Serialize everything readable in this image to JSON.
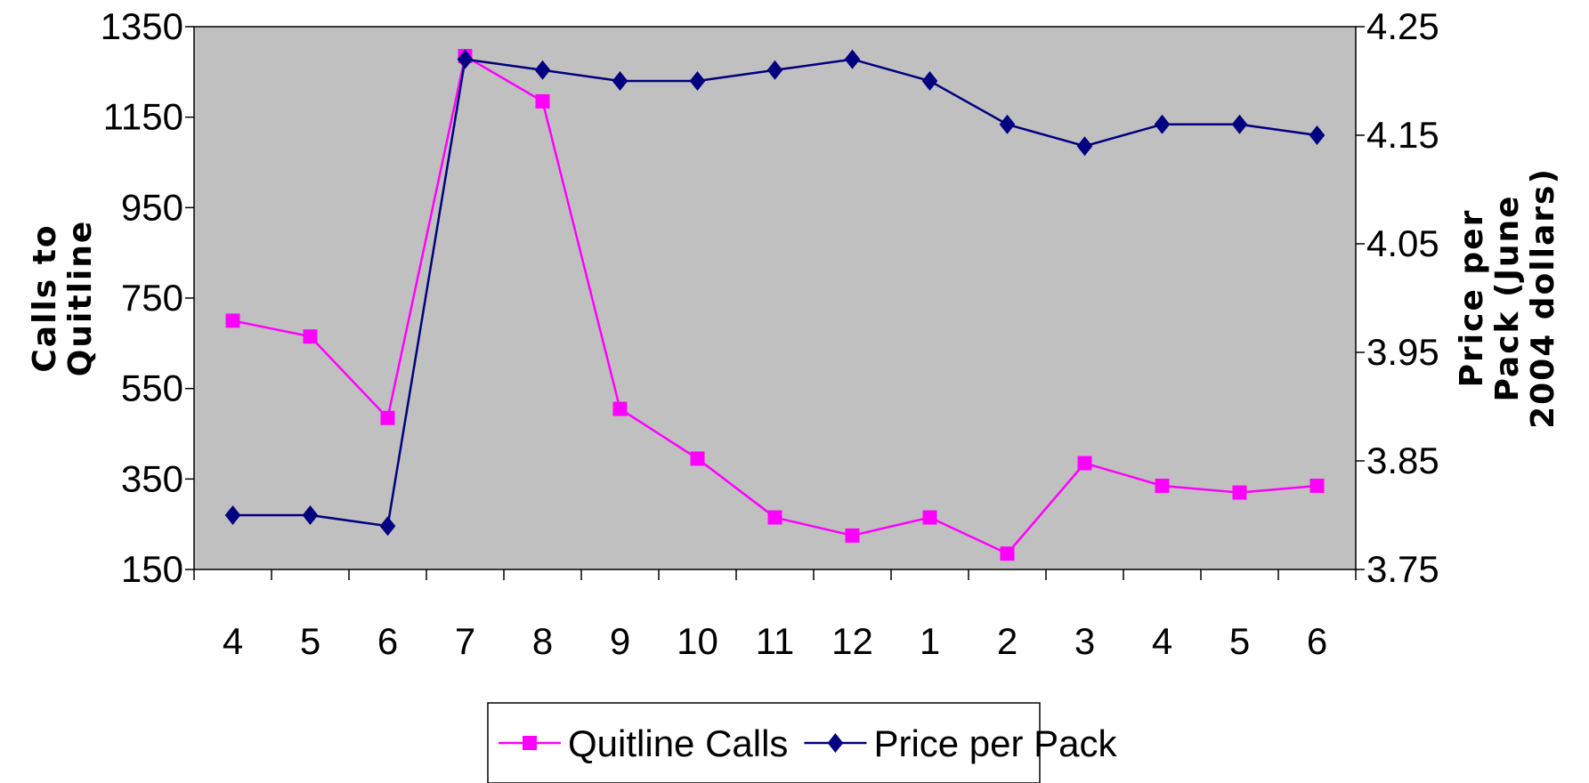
{
  "chart_data": {
    "type": "line",
    "x": [
      "4",
      "5",
      "6",
      "7",
      "8",
      "9",
      "10",
      "11",
      "12",
      "1",
      "2",
      "3",
      "4",
      "5",
      "6"
    ],
    "series": [
      {
        "name": "Quitline Calls",
        "axis": "left",
        "color": "#ff00ff",
        "marker": "square",
        "values": [
          700,
          665,
          485,
          1285,
          1185,
          505,
          395,
          265,
          225,
          265,
          185,
          385,
          335,
          320,
          335
        ]
      },
      {
        "name": "Price per Pack",
        "axis": "right",
        "color": "#000080",
        "marker": "diamond",
        "values": [
          3.8,
          3.8,
          3.79,
          4.22,
          4.21,
          4.2,
          4.2,
          4.21,
          4.22,
          4.2,
          4.16,
          4.14,
          4.16,
          4.16,
          4.15
        ]
      }
    ],
    "y_left": {
      "label_lines": [
        "Calls to",
        "Quitline"
      ],
      "ticks": [
        "150",
        "350",
        "550",
        "750",
        "950",
        "1150",
        "1350"
      ],
      "ylim": [
        150,
        1350
      ]
    },
    "y_right": {
      "label_lines": [
        "Price per",
        "Pack (June",
        "2004 dollars)"
      ],
      "ticks": [
        "3.75",
        "3.85",
        "3.95",
        "4.05",
        "4.15",
        "4.25"
      ],
      "ylim": [
        3.75,
        4.25
      ]
    },
    "grid": false,
    "plot_background": "#c0c0c0",
    "legend_position": "bottom"
  }
}
